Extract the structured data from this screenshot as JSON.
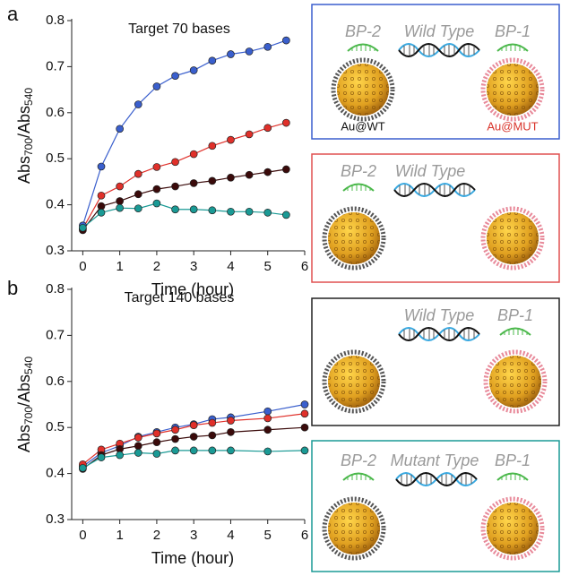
{
  "chart_data": [
    {
      "type": "line",
      "panel_label": "a",
      "title": "Target 70 bases",
      "xlabel": "Time (hour)",
      "ylabel_parts": [
        "Abs",
        "700",
        "/Abs",
        "540"
      ],
      "x": [
        0,
        0.5,
        1,
        1.5,
        2,
        2.5,
        3,
        3.5,
        4,
        4.5,
        5,
        5.5
      ],
      "series": [
        {
          "color": "#3a5fcd",
          "values": [
            0.355,
            0.483,
            0.565,
            0.618,
            0.657,
            0.68,
            0.692,
            0.713,
            0.727,
            0.733,
            0.743,
            0.757
          ]
        },
        {
          "color": "#e0302a",
          "values": [
            0.348,
            0.42,
            0.44,
            0.467,
            0.482,
            0.493,
            0.51,
            0.528,
            0.541,
            0.553,
            0.567,
            0.578
          ]
        },
        {
          "color": "#3a0a0a",
          "values": [
            0.345,
            0.397,
            0.408,
            0.423,
            0.434,
            0.44,
            0.447,
            0.452,
            0.459,
            0.465,
            0.471,
            0.477
          ]
        },
        {
          "color": "#1a9a95",
          "values": [
            0.35,
            0.383,
            0.393,
            0.392,
            0.403,
            0.39,
            0.39,
            0.388,
            0.385,
            0.385,
            0.383,
            0.378
          ]
        }
      ],
      "xlim": [
        -0.3,
        6
      ],
      "xticks": [
        0,
        1,
        2,
        3,
        4,
        5,
        6
      ],
      "ylim": [
        0.3,
        0.8
      ],
      "yticks": [
        0.3,
        0.4,
        0.5,
        0.6,
        0.7,
        0.8
      ]
    },
    {
      "type": "line",
      "panel_label": "b",
      "title": "Target 140 bases",
      "xlabel": "Time (hour)",
      "ylabel_parts": [
        "Abs",
        "700",
        "/Abs",
        "540"
      ],
      "x": [
        0,
        0.5,
        1,
        1.5,
        2,
        2.5,
        3,
        3.5,
        4,
        5,
        6
      ],
      "series": [
        {
          "color": "#3a5fcd",
          "values": [
            0.415,
            0.445,
            0.46,
            0.48,
            0.49,
            0.5,
            0.507,
            0.518,
            0.522,
            0.535,
            0.55
          ]
        },
        {
          "color": "#e0302a",
          "values": [
            0.42,
            0.452,
            0.465,
            0.478,
            0.487,
            0.495,
            0.505,
            0.51,
            0.515,
            0.52,
            0.53
          ]
        },
        {
          "color": "#3a0a0a",
          "values": [
            0.41,
            0.44,
            0.453,
            0.46,
            0.468,
            0.475,
            0.48,
            0.483,
            0.49,
            0.495,
            0.5
          ]
        },
        {
          "color": "#1a9a95",
          "values": [
            0.412,
            0.435,
            0.44,
            0.445,
            0.443,
            0.45,
            0.45,
            0.45,
            0.45,
            0.448,
            0.45
          ]
        }
      ],
      "xlim": [
        -0.3,
        6
      ],
      "xticks": [
        0,
        1,
        2,
        3,
        4,
        5,
        6
      ],
      "ylim": [
        0.3,
        0.8
      ],
      "yticks": [
        0.3,
        0.4,
        0.5,
        0.6,
        0.7,
        0.8
      ]
    }
  ],
  "diagram": {
    "boxes": [
      {
        "bp2": "BP-2",
        "target": "Wild Type",
        "bp1": "BP-1",
        "left_label": "Au@WT",
        "right_label": "Au@MUT"
      },
      {
        "bp2": "BP-2",
        "target": "Wild Type"
      },
      {
        "target": "Wild Type",
        "bp1": "BP-1"
      },
      {
        "bp2": "BP-2",
        "target": "Mutant Type",
        "bp1": "BP-1"
      }
    ]
  }
}
